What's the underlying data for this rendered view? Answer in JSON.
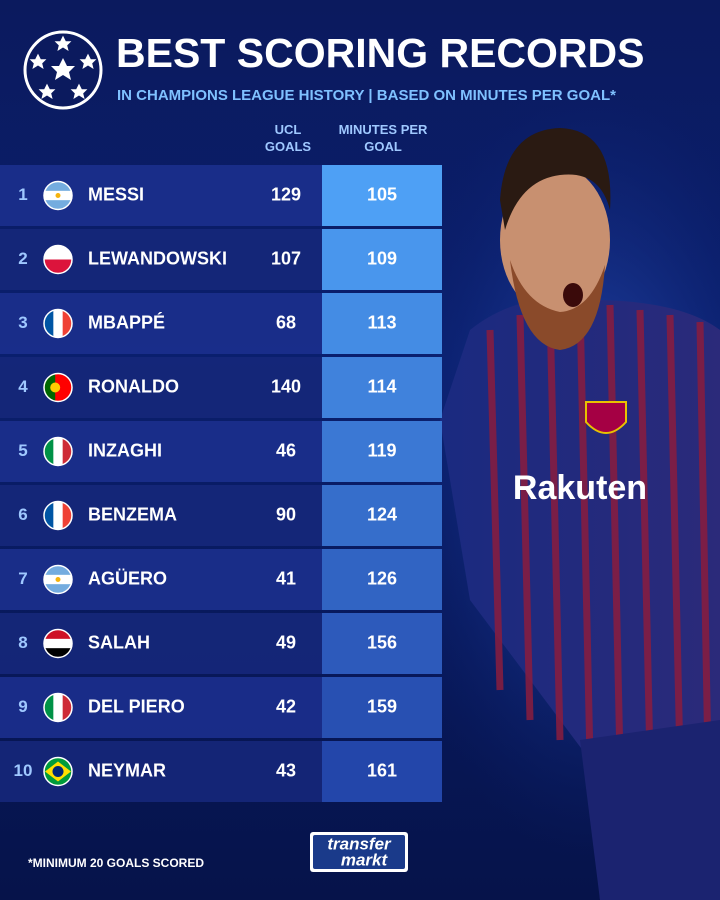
{
  "header": {
    "title": "BEST SCORING RECORDS",
    "subtitle": "IN CHAMPIONS LEAGUE HISTORY | BASED ON MINUTES PER GOAL*"
  },
  "table": {
    "columns": [
      "UCL GOALS",
      "MINUTES PER GOAL"
    ],
    "rows": [
      [
        1,
        "MESSI",
        129,
        105
      ],
      [
        2,
        "LEWANDOWSKI",
        107,
        109
      ],
      [
        3,
        "MBAPPÉ",
        68,
        113
      ],
      [
        4,
        "RONALDO",
        140,
        114
      ],
      [
        5,
        "INZAGHI",
        46,
        119
      ],
      [
        6,
        "BENZEMA",
        90,
        124
      ],
      [
        7,
        "AGÜERO",
        41,
        126
      ],
      [
        8,
        "SALAH",
        49,
        156
      ],
      [
        9,
        "DEL PIERO",
        42,
        159
      ],
      [
        10,
        "NEYMAR",
        43,
        161
      ]
    ]
  },
  "footer": {
    "note": "*MINIMUM 20 GOALS SCORED",
    "logo": [
      "transfer",
      "markt"
    ]
  }
}
